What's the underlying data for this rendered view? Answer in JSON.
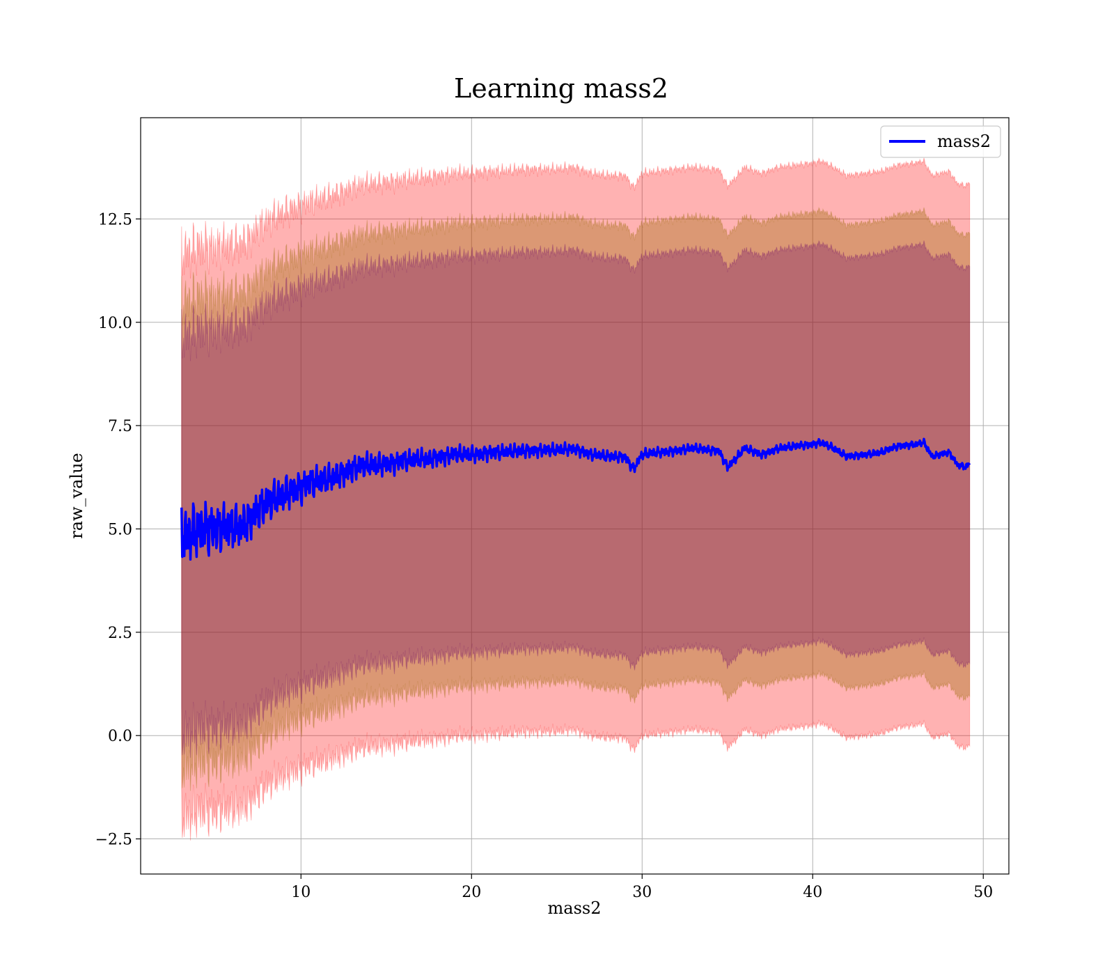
{
  "chart_data": {
    "type": "line",
    "title": "Learning mass2",
    "xlabel": "mass2",
    "ylabel": "raw_value",
    "xlim": [
      0.6,
      51.5
    ],
    "ylim": [
      -3.35,
      14.95
    ],
    "xticks": [
      10,
      20,
      30,
      40,
      50
    ],
    "xtick_labels": [
      "10",
      "20",
      "30",
      "40",
      "50"
    ],
    "yticks": [
      -2.5,
      0.0,
      2.5,
      5.0,
      7.5,
      10.0,
      12.5
    ],
    "ytick_labels": [
      "−2.5",
      "0.0",
      "2.5",
      "5.0",
      "7.5",
      "10.0",
      "12.5"
    ],
    "grid": true,
    "legend": {
      "position": "top-right",
      "entries": [
        "mass2"
      ]
    },
    "colors": {
      "line": "#0000ff",
      "band_outer": "#ff0000",
      "band_middle": "#996600",
      "band_inner": "#660066",
      "grid": "#b0b0b0"
    },
    "bands": [
      {
        "half_width": 6.8,
        "color": "#ff0000",
        "opacity": 0.3
      },
      {
        "half_width": 5.6,
        "color": "#996600",
        "opacity": 0.35
      },
      {
        "half_width": 4.8,
        "color": "#660066",
        "opacity": 0.3
      }
    ],
    "series": [
      {
        "name": "mass2",
        "x": [
          3.0,
          3.5,
          4.0,
          4.5,
          5.0,
          5.5,
          6.0,
          6.5,
          7.0,
          7.5,
          8.0,
          8.5,
          9.0,
          9.5,
          10.0,
          10.5,
          11.0,
          11.5,
          12.0,
          12.5,
          13.0,
          13.5,
          14.0,
          14.5,
          15.0,
          15.5,
          16.0,
          16.5,
          17.0,
          17.5,
          18.0,
          18.5,
          19.0,
          19.5,
          20.0,
          21.0,
          22.0,
          23.0,
          24.0,
          25.0,
          26.0,
          27.0,
          28.0,
          29.0,
          29.5,
          30.0,
          31.0,
          32.0,
          33.0,
          34.0,
          34.5,
          35.0,
          35.5,
          36.0,
          37.0,
          38.0,
          39.0,
          40.0,
          40.5,
          41.0,
          42.0,
          43.0,
          44.0,
          45.0,
          46.0,
          46.5,
          47.0,
          47.5,
          48.0,
          48.5,
          49.0,
          49.2
        ],
        "y": [
          4.85,
          4.9,
          5.0,
          5.0,
          4.95,
          5.05,
          5.05,
          5.1,
          5.2,
          5.45,
          5.6,
          5.75,
          5.85,
          5.95,
          6.0,
          6.1,
          6.15,
          6.2,
          6.3,
          6.35,
          6.45,
          6.5,
          6.55,
          6.55,
          6.6,
          6.6,
          6.65,
          6.65,
          6.7,
          6.7,
          6.75,
          6.75,
          6.8,
          6.8,
          6.8,
          6.85,
          6.85,
          6.9,
          6.9,
          6.9,
          6.95,
          6.8,
          6.75,
          6.75,
          6.45,
          6.8,
          6.85,
          6.9,
          6.95,
          6.9,
          6.9,
          6.5,
          6.7,
          6.95,
          6.8,
          6.95,
          7.0,
          7.05,
          7.1,
          7.0,
          6.75,
          6.8,
          6.85,
          7.0,
          7.05,
          7.1,
          6.75,
          6.8,
          6.85,
          6.55,
          6.5,
          6.6
        ]
      }
    ]
  }
}
